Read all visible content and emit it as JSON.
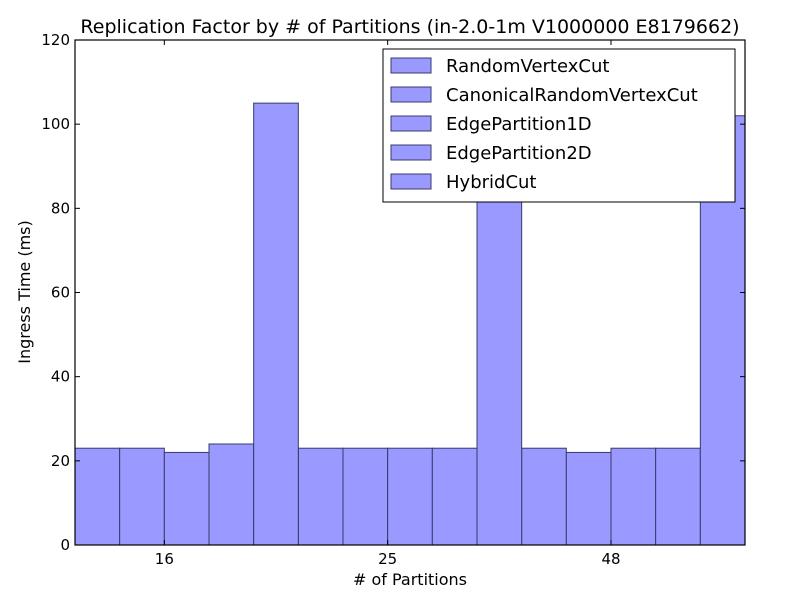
{
  "chart_data": {
    "type": "bar",
    "title": "Replication Factor by # of Partitions (in-2.0-1m V1000000 E8179662)",
    "xlabel": "# of Partitions",
    "ylabel": "Ingress Time (ms)",
    "categories": [
      "16",
      "25",
      "48"
    ],
    "ylim": [
      0,
      120
    ],
    "yticks": [
      0,
      20,
      40,
      60,
      80,
      100,
      120
    ],
    "grid": false,
    "legend_position": "top-right",
    "bar_color": "#9999ff",
    "bar_edge_color": "#3a3a6a",
    "series": [
      {
        "name": "RandomVertexCut",
        "values": [
          23,
          23,
          23
        ]
      },
      {
        "name": "CanonicalRandomVertexCut",
        "values": [
          23,
          23,
          22
        ]
      },
      {
        "name": "EdgePartition1D",
        "values": [
          22,
          23,
          23
        ]
      },
      {
        "name": "EdgePartition2D",
        "values": [
          24,
          23,
          23
        ]
      },
      {
        "name": "HybridCut",
        "values": [
          105,
          87,
          102
        ]
      }
    ]
  }
}
